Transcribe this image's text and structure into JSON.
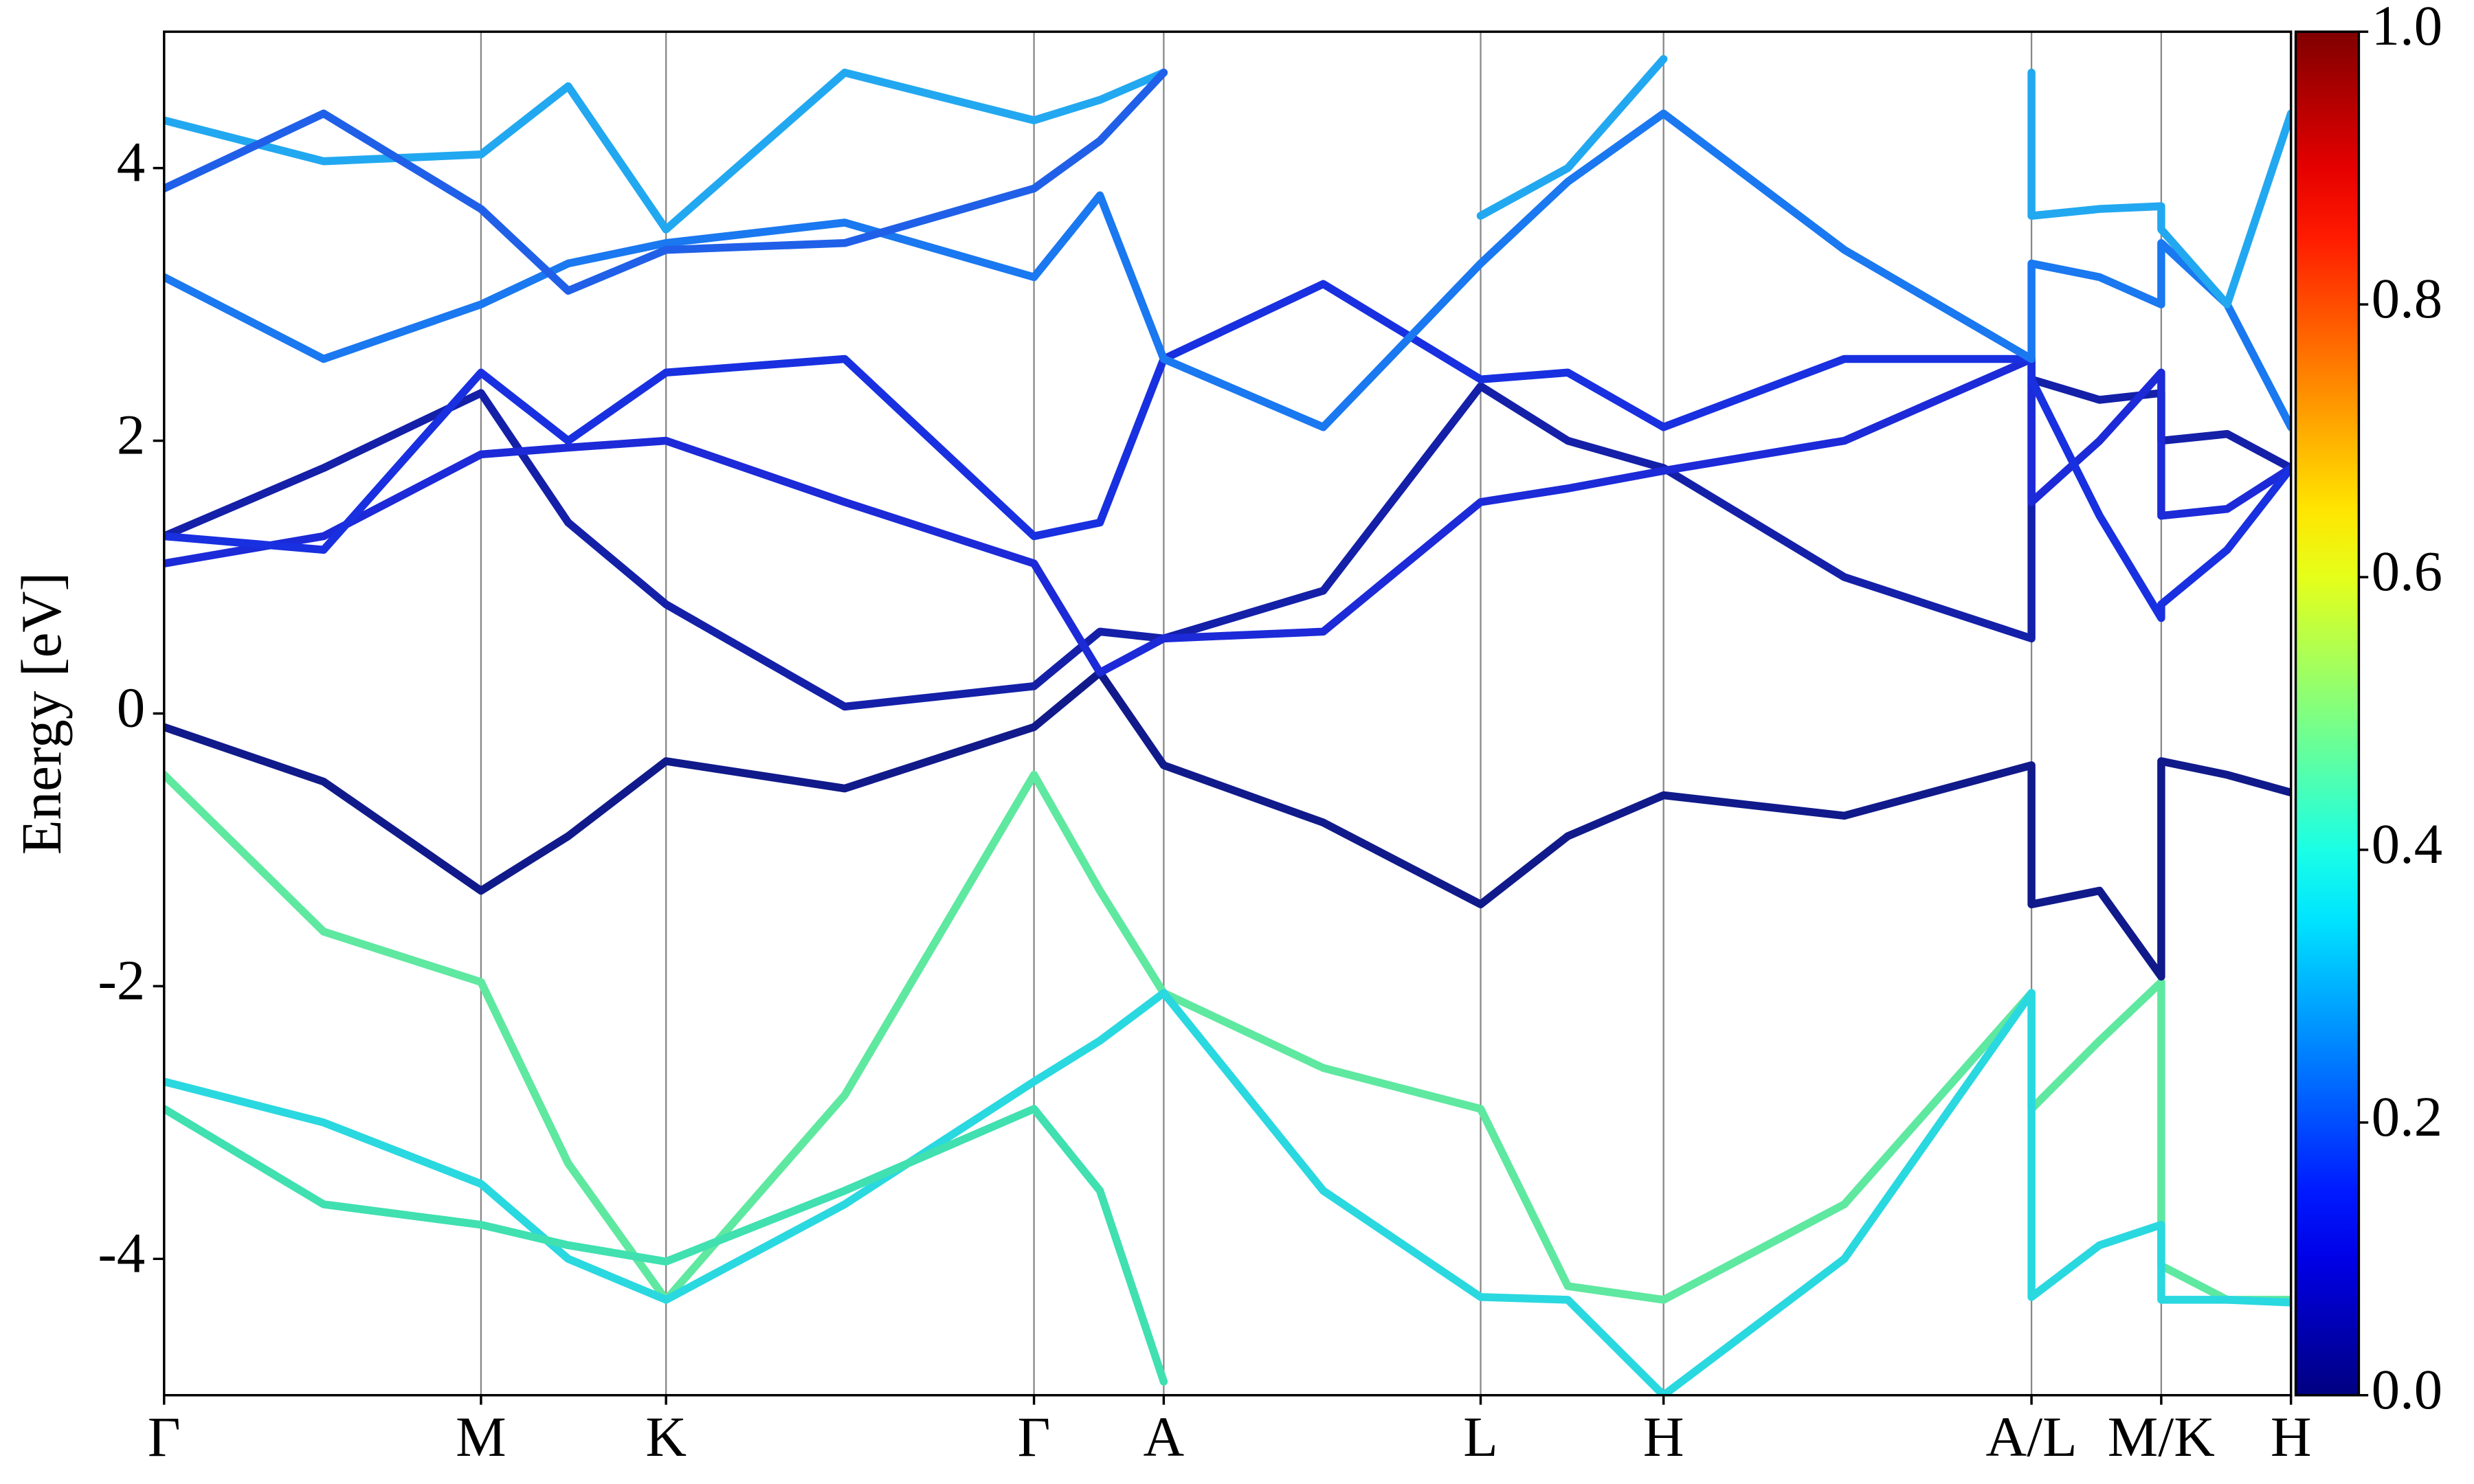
{
  "chart_data": {
    "type": "line",
    "ylabel": "Energy [eV]",
    "x": [
      0,
      0.075,
      0.149,
      0.19,
      0.236,
      0.32,
      0.409,
      0.44,
      0.47,
      0.545,
      0.619,
      0.66,
      0.705,
      0.79,
      0.878,
      0.878,
      0.91,
      0.939,
      0.939,
      0.97,
      1.0
    ],
    "xlim": [
      0,
      1
    ],
    "xticks": [
      {
        "value": 0,
        "label": "Γ"
      },
      {
        "value": 0.149,
        "label": "M"
      },
      {
        "value": 0.236,
        "label": "K"
      },
      {
        "value": 0.409,
        "label": "Γ"
      },
      {
        "value": 0.47,
        "label": "A"
      },
      {
        "value": 0.619,
        "label": "L"
      },
      {
        "value": 0.705,
        "label": "H"
      },
      {
        "value": 0.878,
        "label": "A/L"
      },
      {
        "value": 0.939,
        "label": "M/K"
      },
      {
        "value": 1.0,
        "label": "H"
      }
    ],
    "ylim": [
      -5,
      5
    ],
    "yticks": [
      -4,
      -2,
      0,
      2,
      4
    ],
    "grid": "x",
    "colormap": "jet",
    "clim": [
      0,
      1
    ],
    "cticks": [
      {
        "value": 0,
        "label": "0.0"
      },
      0.2,
      0.4,
      0.6,
      0.8,
      {
        "value": 1,
        "label": "1.0"
      }
    ],
    "series": [
      {
        "color": "#5fe8a0",
        "values": [
          -0.45,
          -1.6,
          -1.97,
          -3.3,
          -4.3,
          -2.8,
          -0.45,
          -1.3,
          -2.05,
          -2.6,
          -2.9,
          -4.2,
          -4.3,
          -3.6,
          -2.05,
          -2.9,
          -2.4,
          -1.97,
          -4.05,
          -4.3,
          -4.3
        ]
      },
      {
        "color": "#2ad8e0",
        "values": [
          -2.7,
          -3.0,
          -3.45,
          -4.0,
          -4.3,
          -3.6,
          -2.7,
          -2.4,
          -2.05,
          -3.5,
          -4.28,
          -4.3,
          -5.0,
          -4.0,
          -2.05,
          -4.28,
          -3.9,
          -3.75,
          -4.3,
          -4.3,
          -4.32
        ]
      },
      {
        "color": "#40e0b0",
        "values": [
          -2.9,
          -3.6,
          -3.75,
          -3.9,
          -4.02,
          -3.5,
          -2.9,
          -3.5,
          -4.9,
          null,
          null,
          null,
          null,
          null,
          null,
          null,
          null,
          null,
          null,
          null,
          null
        ]
      },
      {
        "color": "#101a8a",
        "values": [
          -0.1,
          -0.5,
          -1.3,
          -0.9,
          -0.35,
          -0.55,
          -0.1,
          0.3,
          -0.38,
          -0.8,
          -1.4,
          -0.9,
          -0.6,
          -0.75,
          -0.38,
          -1.4,
          -1.3,
          -1.93,
          -0.35,
          -0.45,
          -0.58
        ]
      },
      {
        "color": "#1420a8",
        "values": [
          1.3,
          1.8,
          2.35,
          1.4,
          0.8,
          0.05,
          0.2,
          0.6,
          0.55,
          0.9,
          2.4,
          2.0,
          1.8,
          1.0,
          0.55,
          2.45,
          2.3,
          2.35,
          2.0,
          2.05,
          1.8
        ]
      },
      {
        "color": "#1c2ad8",
        "values": [
          1.1,
          1.3,
          1.9,
          1.95,
          2.0,
          1.55,
          1.1,
          0.3,
          0.55,
          0.6,
          1.55,
          1.65,
          1.78,
          2.0,
          2.6,
          1.55,
          2.0,
          2.5,
          1.45,
          1.5,
          1.8
        ]
      },
      {
        "color": "#1830e0",
        "values": [
          1.3,
          1.2,
          2.5,
          2.0,
          2.5,
          2.6,
          1.3,
          1.4,
          2.6,
          3.15,
          2.45,
          2.5,
          2.1,
          2.6,
          2.6,
          2.45,
          1.45,
          0.7,
          0.8,
          1.2,
          1.8
        ]
      },
      {
        "color": "#1a78f0",
        "values": [
          3.2,
          2.6,
          3.0,
          3.3,
          3.45,
          3.6,
          3.2,
          3.8,
          2.6,
          2.1,
          3.3,
          3.9,
          4.4,
          3.4,
          2.6,
          3.3,
          3.2,
          3.0,
          3.45,
          3.0,
          2.1
        ]
      },
      {
        "color": "#22a8f0",
        "values": [
          4.35,
          4.05,
          4.1,
          4.6,
          3.55,
          4.7,
          4.35,
          4.5,
          4.7,
          null,
          3.65,
          4.0,
          4.8,
          null,
          4.7,
          3.65,
          3.7,
          3.72,
          3.55,
          3.0,
          4.4
        ]
      },
      {
        "color": "#2060e8",
        "values": [
          3.85,
          4.4,
          3.7,
          3.1,
          3.4,
          3.45,
          3.85,
          4.2,
          4.7,
          null,
          null,
          null,
          null,
          null,
          null,
          null,
          null,
          null,
          null,
          null,
          null
        ]
      }
    ]
  }
}
